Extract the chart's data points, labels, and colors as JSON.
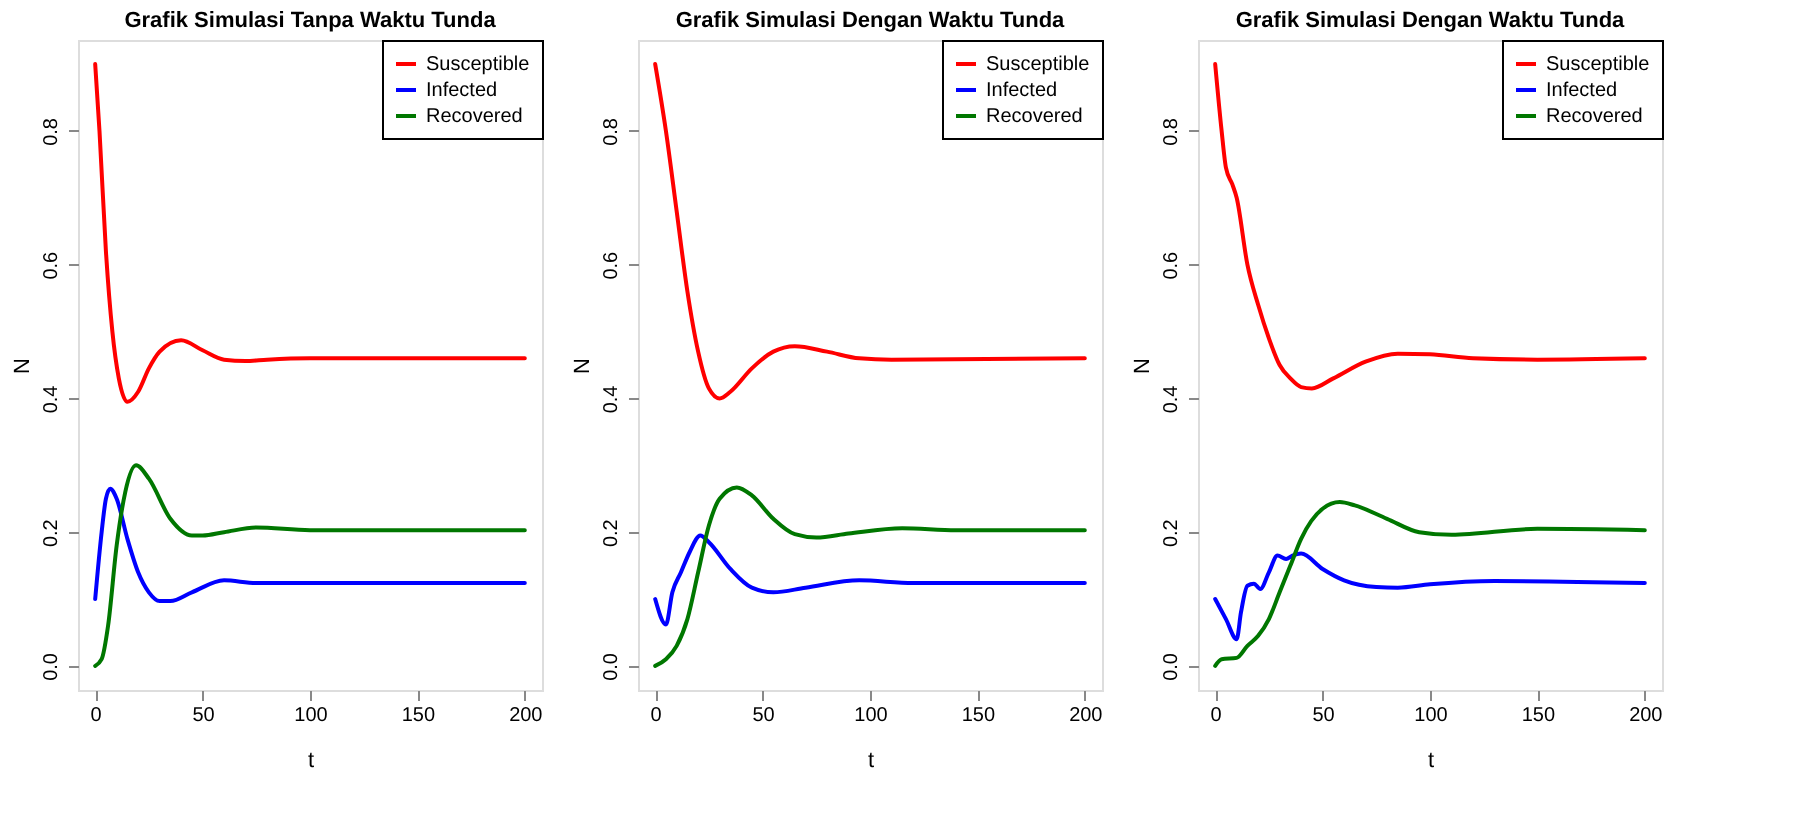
{
  "chart_data": [
    {
      "type": "line",
      "title": "Grafik Simulasi Tanpa Waktu Tunda",
      "xlabel": "t",
      "ylabel": "N",
      "xlim": [
        -8,
        208
      ],
      "ylim": [
        -0.036,
        0.936
      ],
      "xticks": [
        0,
        50,
        100,
        150,
        200
      ],
      "yticks": [
        {
          "value": 0,
          "label": "0.0"
        },
        {
          "value": 0.2,
          "label": "0.2"
        },
        {
          "value": 0.4,
          "label": "0.4"
        },
        {
          "value": 0.6,
          "label": "0.6"
        },
        {
          "value": 0.8,
          "label": "0.8"
        }
      ],
      "grid": false,
      "legend": "top right",
      "series": [
        {
          "name": "Susceptible",
          "color": "#ff0000",
          "x": [
            0,
            2,
            5,
            8,
            11,
            15,
            20,
            25,
            30,
            40,
            50,
            60,
            70,
            80,
            100,
            200
          ],
          "values": [
            0.9,
            0.8,
            0.62,
            0.5,
            0.43,
            0.395,
            0.41,
            0.445,
            0.47,
            0.487,
            0.472,
            0.458,
            0.456,
            0.458,
            0.46,
            0.46
          ]
        },
        {
          "name": "Infected",
          "color": "#0000ff",
          "x": [
            0,
            3,
            5,
            7,
            10,
            15,
            20,
            25,
            30,
            35,
            45,
            60,
            75,
            100,
            200
          ],
          "values": [
            0.1,
            0.2,
            0.25,
            0.265,
            0.25,
            0.19,
            0.14,
            0.11,
            0.097,
            0.097,
            0.11,
            0.128,
            0.124,
            0.124,
            0.124
          ]
        },
        {
          "name": "Recovered",
          "color": "#007700",
          "x": [
            0,
            3,
            6,
            10,
            14,
            19,
            25,
            35,
            45,
            50,
            60,
            75,
            100,
            200
          ],
          "values": [
            0,
            0.01,
            0.06,
            0.18,
            0.26,
            0.3,
            0.28,
            0.22,
            0.195,
            0.195,
            0.2,
            0.207,
            0.203,
            0.203
          ]
        }
      ]
    },
    {
      "type": "line",
      "title": "Grafik Simulasi Dengan Waktu Tunda",
      "xlabel": "t",
      "ylabel": "N",
      "xlim": [
        -8,
        208
      ],
      "ylim": [
        -0.036,
        0.936
      ],
      "xticks": [
        0,
        50,
        100,
        150,
        200
      ],
      "yticks": [
        {
          "value": 0,
          "label": "0.0"
        },
        {
          "value": 0.2,
          "label": "0.2"
        },
        {
          "value": 0.4,
          "label": "0.4"
        },
        {
          "value": 0.6,
          "label": "0.6"
        },
        {
          "value": 0.8,
          "label": "0.8"
        }
      ],
      "grid": false,
      "legend": "top right",
      "series": [
        {
          "name": "Susceptible",
          "color": "#ff0000",
          "x": [
            0,
            5,
            10,
            15,
            20,
            25,
            30,
            35,
            45,
            55,
            65,
            80,
            95,
            110,
            200
          ],
          "values": [
            0.9,
            0.8,
            0.68,
            0.56,
            0.47,
            0.415,
            0.4,
            0.41,
            0.445,
            0.47,
            0.478,
            0.47,
            0.46,
            0.458,
            0.46
          ]
        },
        {
          "name": "Infected",
          "color": "#0000ff",
          "x": [
            0,
            5,
            8,
            12,
            16,
            21,
            25,
            35,
            45,
            55,
            70,
            95,
            120,
            200
          ],
          "values": [
            0.1,
            0.062,
            0.11,
            0.14,
            0.17,
            0.195,
            0.185,
            0.145,
            0.117,
            0.11,
            0.117,
            0.128,
            0.124,
            0.124
          ]
        },
        {
          "name": "Recovered",
          "color": "#007700",
          "x": [
            0,
            5,
            10,
            15,
            20,
            25,
            30,
            38,
            45,
            55,
            65,
            75,
            90,
            115,
            140,
            200
          ],
          "values": [
            0,
            0.01,
            0.03,
            0.07,
            0.14,
            0.21,
            0.25,
            0.267,
            0.255,
            0.22,
            0.197,
            0.192,
            0.198,
            0.206,
            0.203,
            0.203
          ]
        }
      ]
    },
    {
      "type": "line",
      "title": "Grafik Simulasi Dengan Waktu Tunda",
      "xlabel": "t",
      "ylabel": "N",
      "xlim": [
        -8,
        208
      ],
      "ylim": [
        -0.036,
        0.936
      ],
      "xticks": [
        0,
        50,
        100,
        150,
        200
      ],
      "yticks": [
        {
          "value": 0,
          "label": "0.0"
        },
        {
          "value": 0.2,
          "label": "0.2"
        },
        {
          "value": 0.4,
          "label": "0.4"
        },
        {
          "value": 0.6,
          "label": "0.6"
        },
        {
          "value": 0.8,
          "label": "0.8"
        }
      ],
      "grid": false,
      "legend": "top right",
      "series": [
        {
          "name": "Susceptible",
          "color": "#ff0000",
          "x": [
            0,
            3,
            5,
            8,
            10,
            15,
            20,
            25,
            30,
            35,
            40,
            45,
            55,
            70,
            85,
            100,
            120,
            150,
            200
          ],
          "values": [
            0.9,
            0.8,
            0.745,
            0.72,
            0.7,
            0.6,
            0.54,
            0.49,
            0.45,
            0.43,
            0.417,
            0.415,
            0.43,
            0.455,
            0.467,
            0.466,
            0.46,
            0.458,
            0.46
          ]
        },
        {
          "name": "Infected",
          "color": "#0000ff",
          "x": [
            0,
            5,
            10,
            12,
            15,
            18,
            21,
            25,
            29,
            33,
            36,
            40,
            50,
            60,
            75,
            85,
            100,
            130,
            200
          ],
          "values": [
            0.1,
            0.07,
            0.04,
            0.08,
            0.12,
            0.123,
            0.115,
            0.14,
            0.165,
            0.16,
            0.165,
            0.168,
            0.145,
            0.128,
            0.118,
            0.117,
            0.122,
            0.127,
            0.124
          ]
        },
        {
          "name": "Recovered",
          "color": "#007700",
          "x": [
            0,
            3,
            10,
            15,
            20,
            25,
            30,
            35,
            40,
            50,
            58,
            65,
            80,
            95,
            110,
            150,
            200
          ],
          "values": [
            0,
            0.01,
            0.012,
            0.03,
            0.045,
            0.07,
            0.11,
            0.15,
            0.19,
            0.235,
            0.245,
            0.24,
            0.22,
            0.2,
            0.196,
            0.205,
            0.203
          ]
        }
      ]
    }
  ]
}
